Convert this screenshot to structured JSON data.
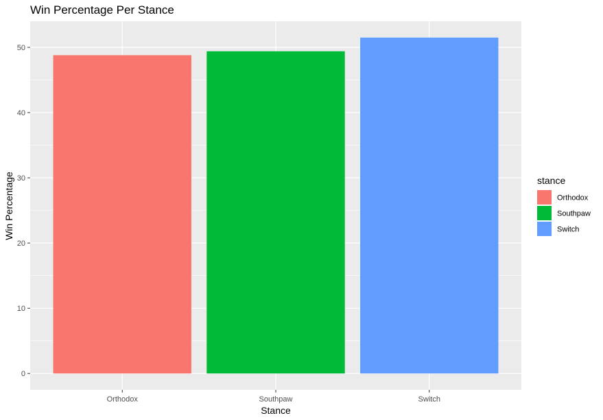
{
  "chart_data": {
    "type": "bar",
    "title": "Win Percentage Per Stance",
    "xlabel": "Stance",
    "ylabel": "Win Percentage",
    "categories": [
      "Orthodox",
      "Southpaw",
      "Switch"
    ],
    "values": [
      48.8,
      49.4,
      51.5
    ],
    "colors": [
      "#F8766D",
      "#00BA38",
      "#619CFF"
    ],
    "ylim": [
      -2.5,
      54
    ],
    "yticks": [
      0,
      10,
      20,
      30,
      40,
      50
    ],
    "ytick_labels": [
      "0",
      "10",
      "20",
      "30",
      "40",
      "50"
    ],
    "grid": true,
    "panel_background": "#EBEBEB",
    "legend": {
      "title": "stance",
      "position": "right",
      "items": [
        "Orthodox",
        "Southpaw",
        "Switch"
      ]
    }
  }
}
